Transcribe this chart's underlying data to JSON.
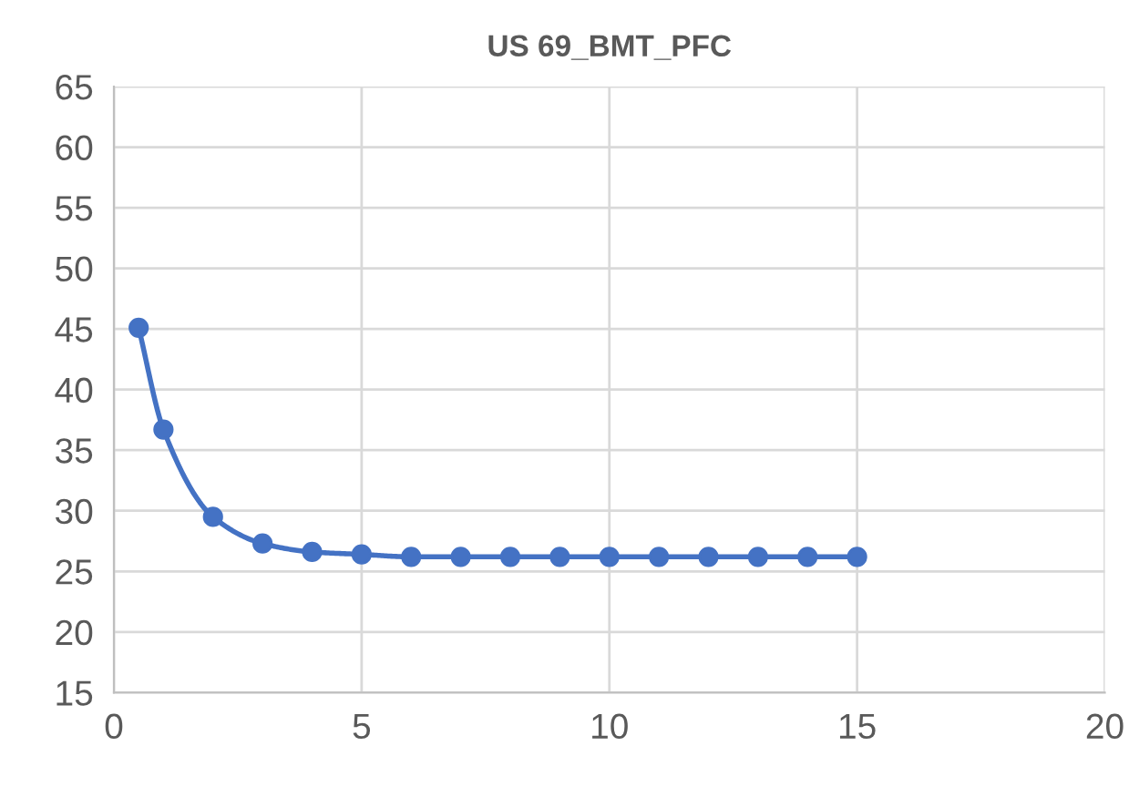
{
  "chart_data": {
    "type": "line",
    "title": "US 69_BMT_PFC",
    "x": [
      0.5,
      1,
      2,
      3,
      4,
      5,
      6,
      7,
      8,
      9,
      10,
      11,
      12,
      13,
      14,
      15
    ],
    "series": [
      {
        "color": "#4472c4",
        "values": [
          45.1,
          36.7,
          29.5,
          27.3,
          26.6,
          26.4,
          26.2,
          26.2,
          26.2,
          26.2,
          26.2,
          26.2,
          26.2,
          26.2,
          26.2,
          26.2
        ]
      }
    ],
    "xlim": [
      0,
      20
    ],
    "xticks": [
      0,
      5,
      10,
      15,
      20
    ],
    "ylim": [
      15,
      65
    ],
    "yticks": [
      15,
      20,
      25,
      30,
      35,
      40,
      45,
      50,
      55,
      60,
      65
    ],
    "grid": true,
    "marker": "circle",
    "line_style": "solid"
  }
}
